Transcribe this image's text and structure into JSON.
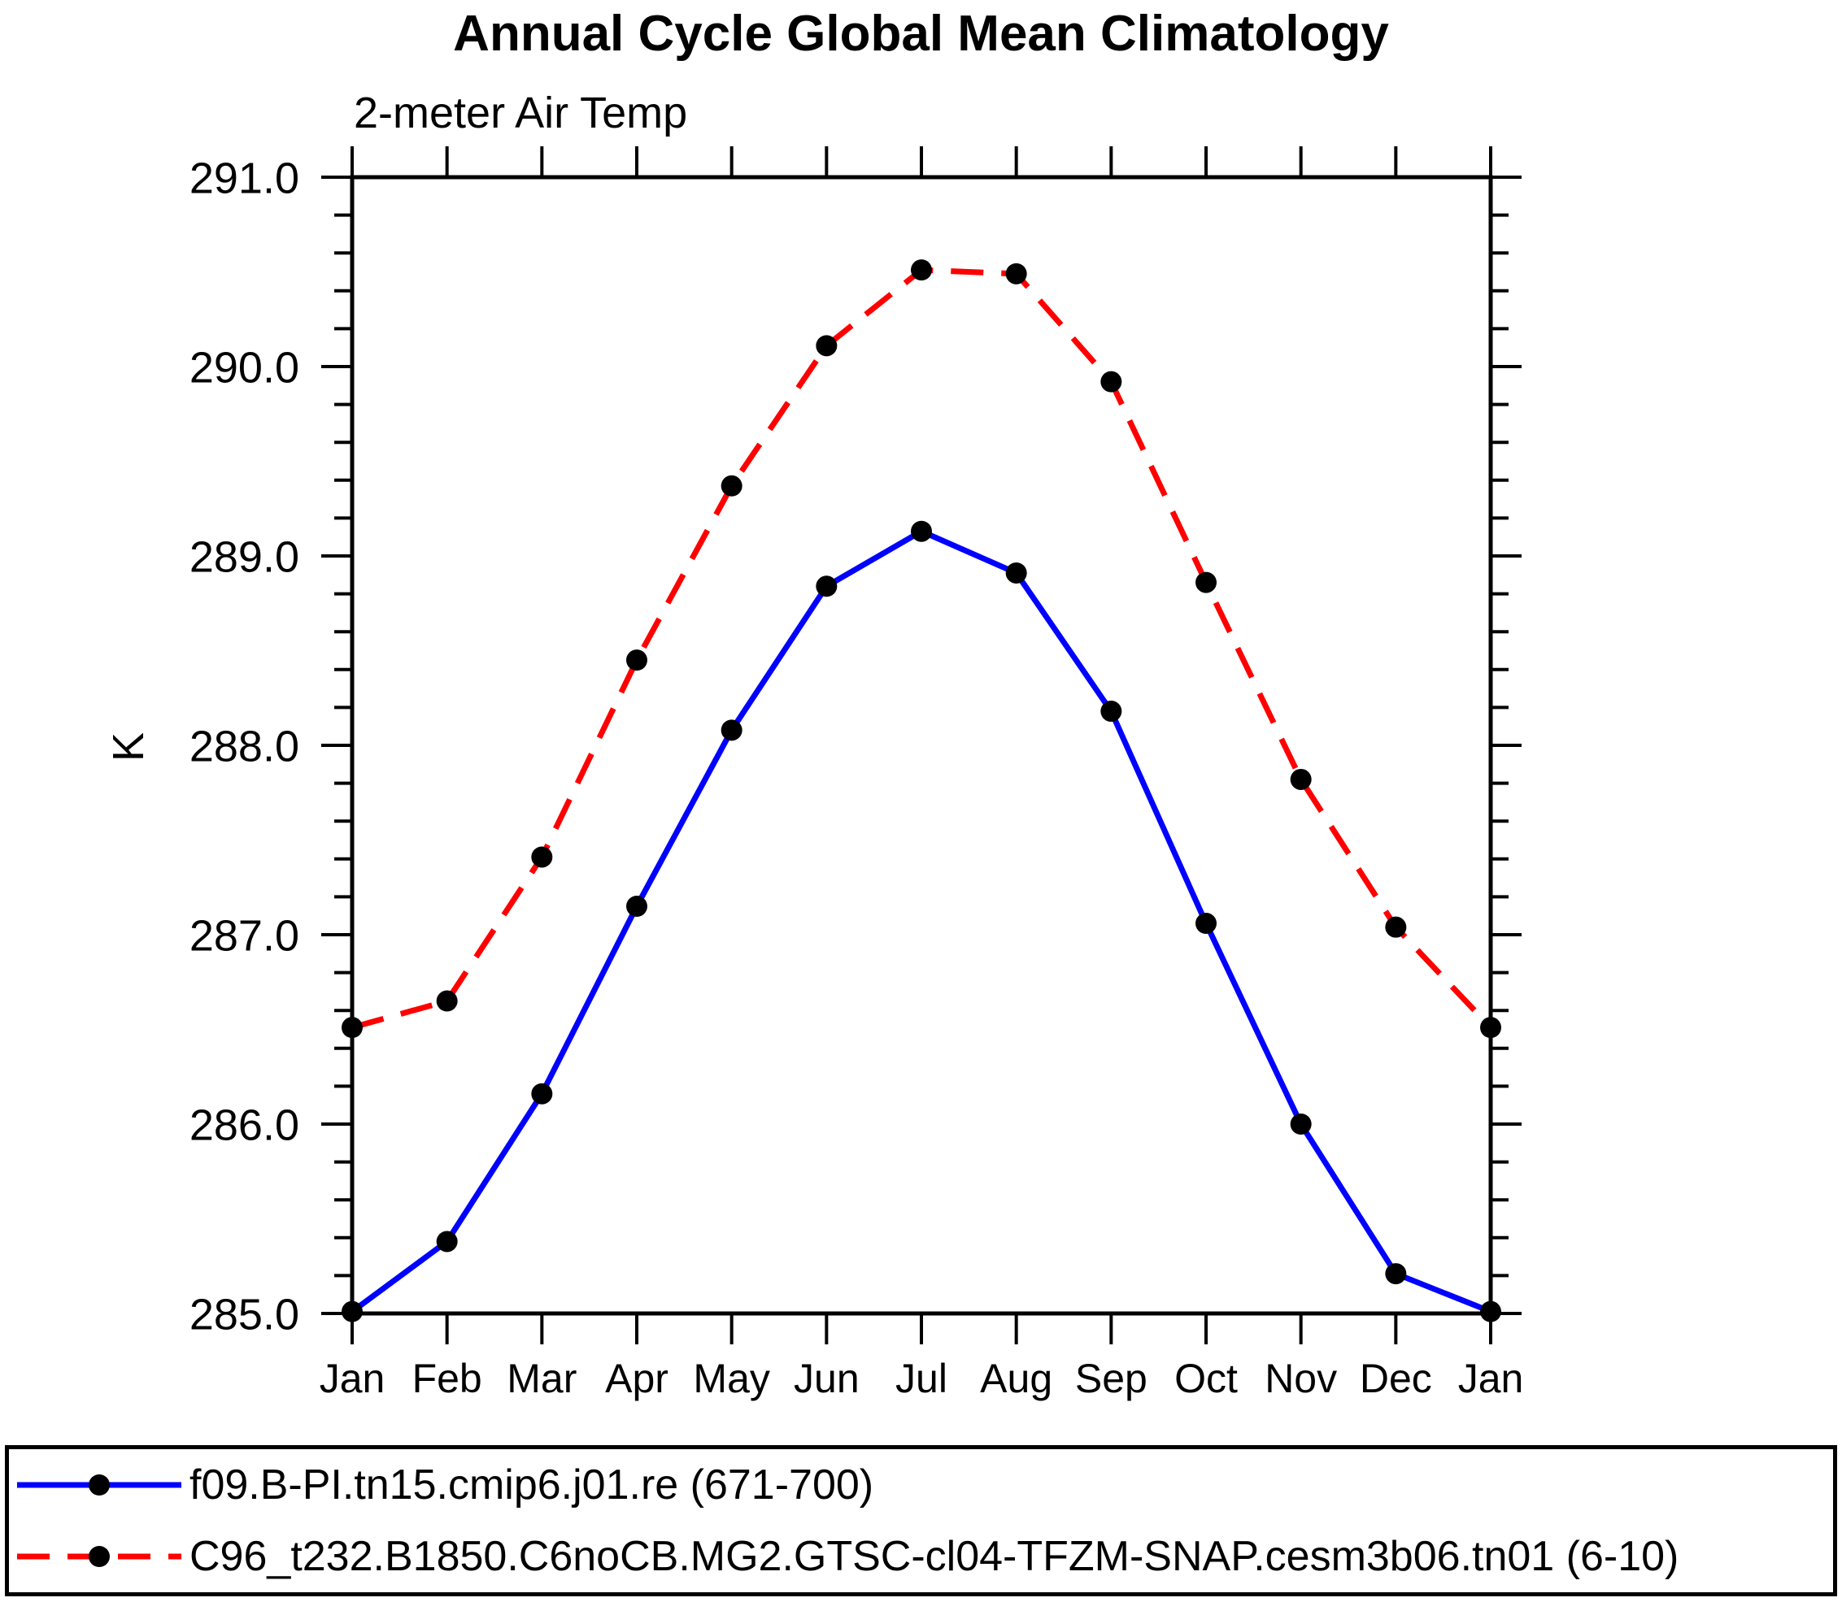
{
  "chart_data": {
    "type": "line",
    "title": "Annual Cycle Global Mean Climatology",
    "subtitle": "2-meter Air Temp",
    "ylabel": "K",
    "xlabel": "",
    "categories": [
      "Jan",
      "Feb",
      "Mar",
      "Apr",
      "May",
      "Jun",
      "Jul",
      "Aug",
      "Sep",
      "Oct",
      "Nov",
      "Dec",
      "Jan"
    ],
    "ylim": [
      285.0,
      291.0
    ],
    "y_major_step": 1.0,
    "y_minor_step": 0.2,
    "y_tick_labels": [
      "285.0",
      "286.0",
      "287.0",
      "288.0",
      "289.0",
      "290.0",
      "291.0"
    ],
    "grid": false,
    "legend_position": "bottom",
    "axis_color": "#000000",
    "marker": "filled-circle",
    "marker_color": "#000000",
    "series": [
      {
        "name": "f09.B-PI.tn15.cmip6.j01.re (671-700)",
        "color": "#0000ff",
        "line_style": "solid",
        "values": [
          285.01,
          285.38,
          286.16,
          287.15,
          288.08,
          288.84,
          289.13,
          288.91,
          288.18,
          287.06,
          286.0,
          285.21,
          285.01
        ]
      },
      {
        "name": "C96_t232.B1850.C6noCB.MG2.GTSC-cl04-TFZM-SNAP.cesm3b06.tn01 (6-10)",
        "color": "#ff0000",
        "line_style": "dashed",
        "values": [
          286.51,
          286.65,
          287.41,
          288.45,
          289.37,
          290.11,
          290.51,
          290.49,
          289.92,
          288.86,
          287.82,
          287.04,
          286.51
        ]
      }
    ]
  }
}
